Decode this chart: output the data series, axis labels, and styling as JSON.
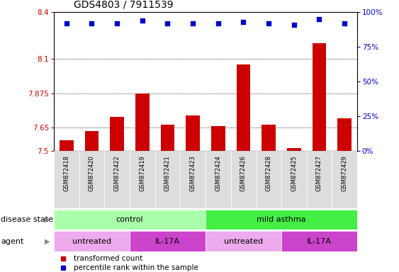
{
  "title": "GDS4803 / 7911539",
  "samples": [
    "GSM872418",
    "GSM872420",
    "GSM872422",
    "GSM872419",
    "GSM872421",
    "GSM872423",
    "GSM872424",
    "GSM872426",
    "GSM872428",
    "GSM872425",
    "GSM872427",
    "GSM872429"
  ],
  "bar_values": [
    7.57,
    7.63,
    7.72,
    7.875,
    7.67,
    7.73,
    7.66,
    8.06,
    7.67,
    7.52,
    8.2,
    7.71
  ],
  "percentile_values": [
    92,
    92,
    92,
    94,
    92,
    92,
    92,
    93,
    92,
    91,
    95,
    92
  ],
  "y_min": 7.5,
  "y_max": 8.4,
  "y_ticks": [
    7.5,
    7.65,
    7.875,
    8.1,
    8.4
  ],
  "y_tick_labels": [
    "7.5",
    "7.65",
    "7.875",
    "8.1",
    "8.4"
  ],
  "y2_ticks": [
    0,
    25,
    50,
    75,
    100
  ],
  "y2_tick_labels": [
    "0%",
    "25%",
    "50%",
    "75%",
    "100%"
  ],
  "dotted_lines": [
    7.65,
    7.875,
    8.1
  ],
  "bar_color": "#cc0000",
  "dot_color": "#0000cc",
  "disease_state_groups": [
    {
      "label": "control",
      "start": 0,
      "end": 5,
      "color": "#aaffaa"
    },
    {
      "label": "mild asthma",
      "start": 6,
      "end": 11,
      "color": "#44ee44"
    }
  ],
  "agent_groups": [
    {
      "label": "untreated",
      "start": 0,
      "end": 2,
      "color": "#eeaaee"
    },
    {
      "label": "IL-17A",
      "start": 3,
      "end": 5,
      "color": "#cc44cc"
    },
    {
      "label": "untreated",
      "start": 6,
      "end": 8,
      "color": "#eeaaee"
    },
    {
      "label": "IL-17A",
      "start": 9,
      "end": 11,
      "color": "#cc44cc"
    }
  ],
  "legend_bar_label": "transformed count",
  "legend_dot_label": "percentile rank within the sample",
  "xlabel_disease": "disease state",
  "xlabel_agent": "agent",
  "title_fontsize": 10,
  "tick_fontsize": 7.5,
  "label_fontsize": 8,
  "sample_fontsize": 6
}
